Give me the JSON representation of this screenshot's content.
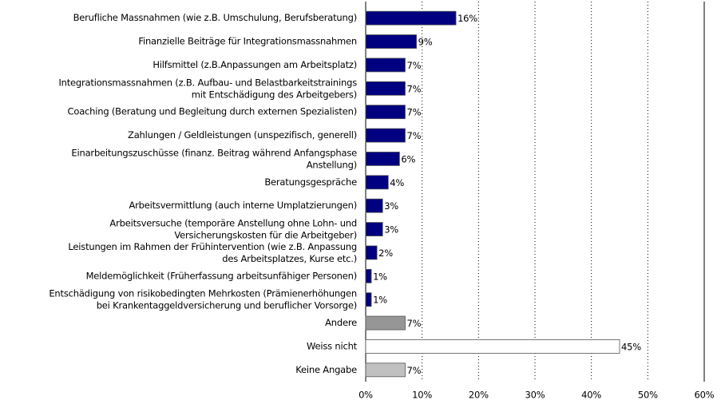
{
  "chart_data": {
    "type": "hbar",
    "categories": [
      "Berufliche Massnahmen (wie z.B. Umschulung, Berufsberatung)",
      "Finanzielle Beiträge für Integrationsmassnahmen",
      "Hilfsmittel (z.B.Anpassungen am Arbeitsplatz)",
      "Integrationsmassnahmen (z.B. Aufbau- und Belastbarkeitstrainings\nmit Entschädigung des Arbeitgebers)",
      "Coaching (Beratung und Begleitung durch externen Spezialisten)",
      "Zahlungen / Geldleistungen (unspezifisch, generell)",
      "Einarbeitungszuschüsse (finanz. Beitrag während Anfangsphase\nAnstellung)",
      "Beratungsgespräche",
      "Arbeitsvermittlung (auch interne Umplatzierungen)",
      "Arbeitsversuche (temporäre Anstellung ohne Lohn- und\nVersicherungskosten für die Arbeitgeber)",
      "Leistungen im Rahmen der Frühintervention (wie z.B. Anpassung\ndes Arbeitsplatzes, Kurse etc.)",
      "Meldemöglichkeit (Früherfassung arbeitsunfähiger Personen)",
      "Entschädigung von risikobedingten Mehrkosten (Prämienerhöhungen\nbei Krankentaggeldversicherung und beruflicher Vorsorge)",
      "Andere",
      "Weiss nicht",
      "Keine Angabe"
    ],
    "values": [
      16,
      9,
      7,
      7,
      7,
      7,
      6,
      4,
      3,
      3,
      2,
      1,
      1,
      7,
      45,
      7
    ],
    "value_labels": [
      "16%",
      "9%",
      "7%",
      "7%",
      "7%",
      "7%",
      "6%",
      "4%",
      "3%",
      "3%",
      "2%",
      "1%",
      "1%",
      "7%",
      "45%",
      "7%"
    ],
    "colors": [
      "#000080",
      "#000080",
      "#000080",
      "#000080",
      "#000080",
      "#000080",
      "#000080",
      "#000080",
      "#000080",
      "#000080",
      "#000080",
      "#000080",
      "#000080",
      "#969696",
      "#ffffff",
      "#c0c0c0"
    ],
    "xlim": [
      0,
      60
    ],
    "xticks": [
      {
        "value": 0,
        "label": "0%"
      },
      {
        "value": 10,
        "label": "10%"
      },
      {
        "value": 20,
        "label": "20%"
      },
      {
        "value": 30,
        "label": "30%"
      },
      {
        "value": 40,
        "label": "40%"
      },
      {
        "value": 50,
        "label": "50%"
      },
      {
        "value": 60,
        "label": "60%"
      }
    ],
    "grid": true
  }
}
